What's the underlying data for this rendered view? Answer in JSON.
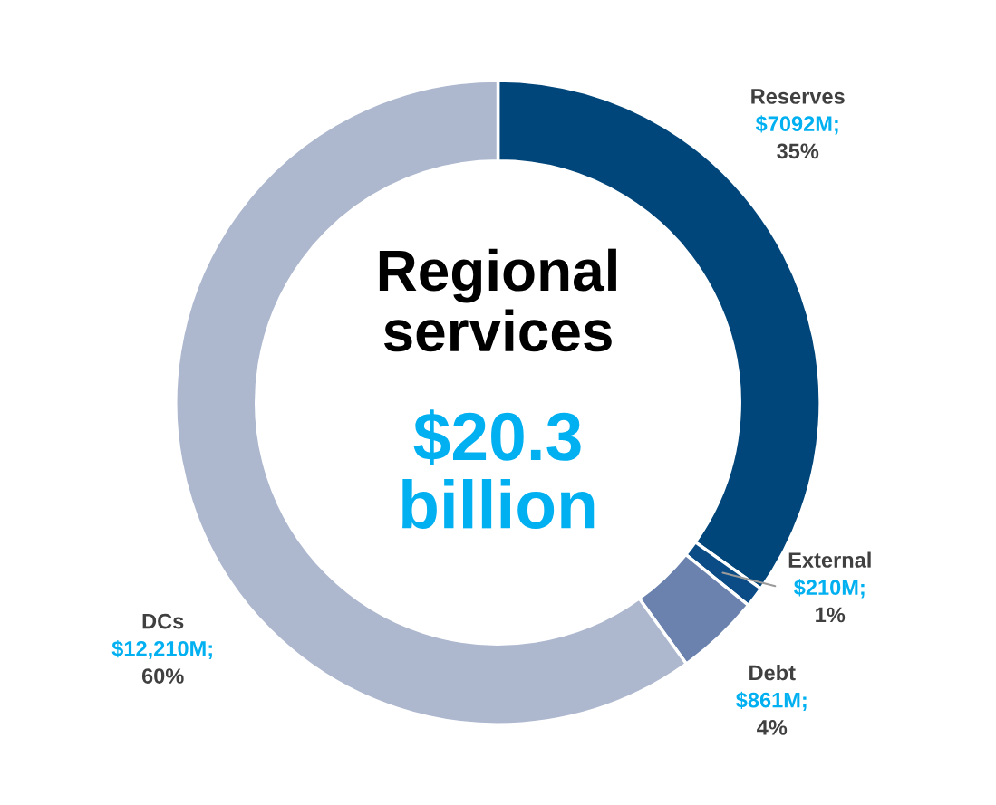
{
  "chart_data": {
    "type": "donut",
    "title": "Regional services",
    "subtitle": "$20.3 billion",
    "categories": [
      "Reserves",
      "External",
      "Debt",
      "DCs"
    ],
    "values": [
      7092,
      210,
      861,
      12210
    ],
    "colors": [
      "#00467a",
      "#0b4c86",
      "#6a82ad",
      "#adb8cf"
    ],
    "value_labels": [
      "$7092M;",
      "$210M;",
      "$861M;",
      "$12,210M;"
    ],
    "annotations": [
      "35%",
      "1%",
      "4%",
      "60%"
    ]
  }
}
